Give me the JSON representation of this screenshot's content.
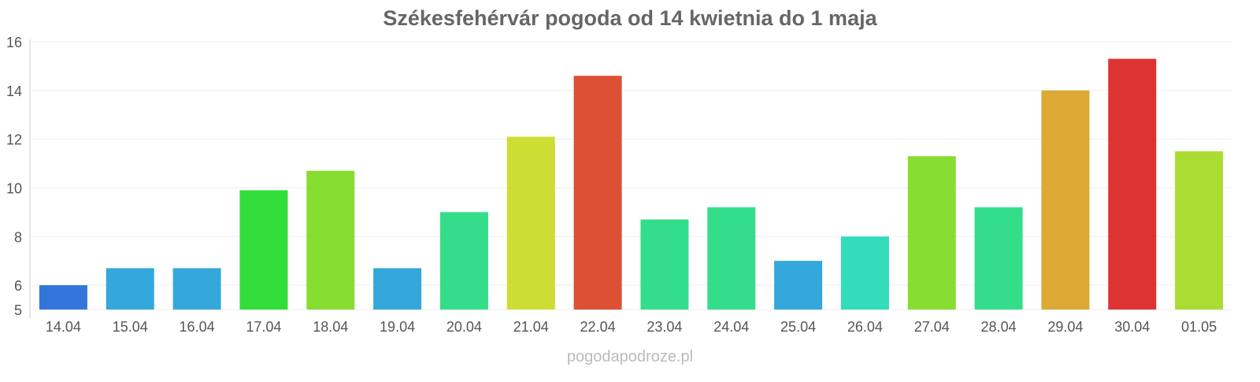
{
  "chart_data": {
    "type": "bar",
    "title": "Székesfehérvár pogoda od 14 kwietnia do 1 maja",
    "xlabel": "",
    "ylabel": "",
    "ylim": [
      5,
      16
    ],
    "yticks": [
      5,
      6,
      8,
      10,
      12,
      14,
      16
    ],
    "grid": true,
    "categories": [
      "14.04",
      "15.04",
      "16.04",
      "17.04",
      "18.04",
      "19.04",
      "20.04",
      "21.04",
      "22.04",
      "23.04",
      "24.04",
      "25.04",
      "26.04",
      "27.04",
      "28.04",
      "29.04",
      "30.04",
      "01.05"
    ],
    "values": [
      6.0,
      6.7,
      6.7,
      9.9,
      10.7,
      6.7,
      9.0,
      12.1,
      14.6,
      8.7,
      9.2,
      7.0,
      8.0,
      11.3,
      9.2,
      14.0,
      15.3,
      11.5
    ],
    "colors": [
      "#3375dd",
      "#34a8da",
      "#34a8da",
      "#33dd3a",
      "#88dd33",
      "#34a8da",
      "#34dd8a",
      "#ccdd33",
      "#dd5033",
      "#34dd8a",
      "#34dd8a",
      "#34a8da",
      "#33ddbb",
      "#88dd33",
      "#34dd8a",
      "#dda833",
      "#dd3433",
      "#aadd33"
    ]
  },
  "watermark": "pogodapodroze.pl"
}
